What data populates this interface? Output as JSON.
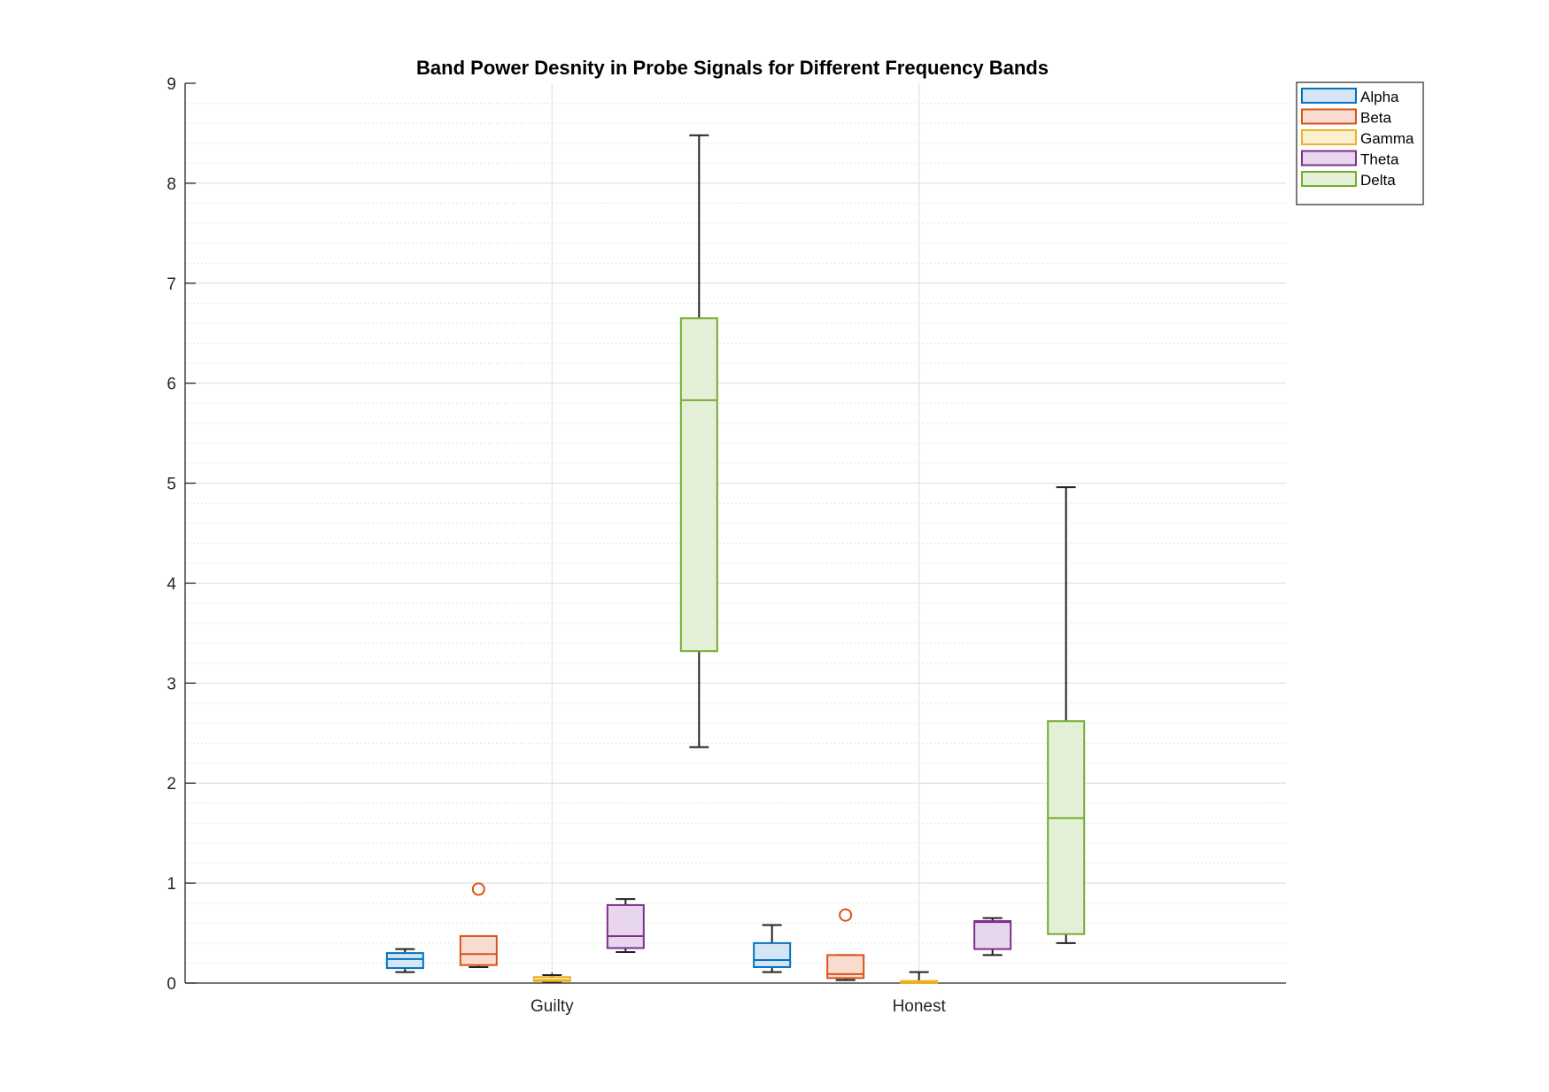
{
  "chart_data": {
    "type": "boxplot",
    "title": "Band Power Desnity in Probe Signals for Different Frequency Bands",
    "xlabel": "",
    "ylabel": "",
    "categories": [
      "Guilty",
      "Honest"
    ],
    "ylim": [
      0,
      9
    ],
    "yticks": [
      0,
      1,
      2,
      3,
      4,
      5,
      6,
      7,
      8,
      9
    ],
    "grid": "major and minor",
    "legend_position": "outside-top-right",
    "series": [
      {
        "name": "Alpha",
        "color": "#0072BD",
        "fill": "#d4e6f5",
        "boxes": [
          {
            "category": "Guilty",
            "min": 0.11,
            "q1": 0.15,
            "median": 0.24,
            "q3": 0.3,
            "max": 0.34,
            "outliers": []
          },
          {
            "category": "Honest",
            "min": 0.11,
            "q1": 0.16,
            "median": 0.23,
            "q3": 0.4,
            "max": 0.58,
            "outliers": []
          }
        ]
      },
      {
        "name": "Beta",
        "color": "#D95319",
        "fill": "#f8dccf",
        "boxes": [
          {
            "category": "Guilty",
            "min": 0.16,
            "q1": 0.18,
            "median": 0.29,
            "q3": 0.47,
            "max": 0.47,
            "outliers": [
              0.94
            ]
          },
          {
            "category": "Honest",
            "min": 0.03,
            "q1": 0.05,
            "median": 0.09,
            "q3": 0.28,
            "max": 0.28,
            "outliers": [
              0.68
            ]
          }
        ]
      },
      {
        "name": "Gamma",
        "color": "#EDB120",
        "fill": "#fbefd2",
        "boxes": [
          {
            "category": "Guilty",
            "min": 0.01,
            "q1": 0.02,
            "median": 0.03,
            "q3": 0.06,
            "max": 0.08,
            "outliers": []
          },
          {
            "category": "Honest",
            "min": 0.0,
            "q1": 0.0,
            "median": 0.01,
            "q3": 0.02,
            "max": 0.11,
            "outliers": []
          }
        ]
      },
      {
        "name": "Theta",
        "color": "#7E2F8E",
        "fill": "#e8d6ec",
        "boxes": [
          {
            "category": "Guilty",
            "min": 0.31,
            "q1": 0.35,
            "median": 0.47,
            "q3": 0.78,
            "max": 0.84,
            "outliers": []
          },
          {
            "category": "Honest",
            "min": 0.28,
            "q1": 0.34,
            "median": 0.61,
            "q3": 0.62,
            "max": 0.65,
            "outliers": []
          }
        ]
      },
      {
        "name": "Delta",
        "color": "#77AC30",
        "fill": "#e3efd7",
        "boxes": [
          {
            "category": "Guilty",
            "min": 2.36,
            "q1": 3.32,
            "median": 5.83,
            "q3": 6.65,
            "max": 8.48,
            "outliers": []
          },
          {
            "category": "Honest",
            "min": 0.4,
            "q1": 0.49,
            "median": 1.65,
            "q3": 2.62,
            "max": 4.96,
            "outliers": []
          }
        ]
      }
    ]
  }
}
